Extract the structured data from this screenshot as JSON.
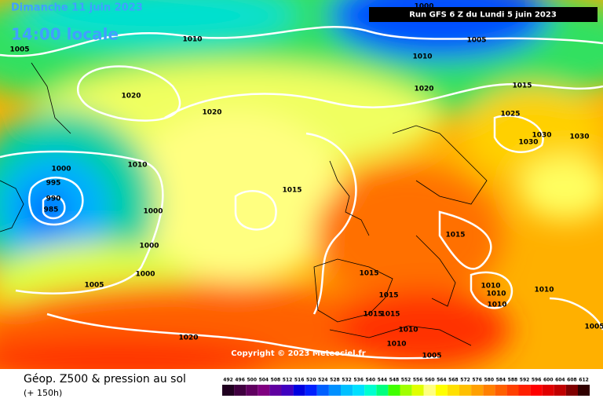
{
  "header": {
    "date": "Dimanche 11 juin 2023",
    "time": "14:00 locale",
    "run": "Run GFS 6 Z du Lundi 5 juin 2023"
  },
  "isobar_labels": [
    1000,
    1010,
    1005,
    1005,
    1010,
    1020,
    1020,
    1015,
    1020,
    1025,
    1030,
    1030,
    1030,
    1010,
    1000,
    995,
    990,
    985,
    1015,
    1000,
    1015,
    1000,
    1000,
    1015,
    1005,
    1010,
    1010,
    1010,
    1015,
    1010,
    1015,
    1015,
    1005,
    1010,
    1020,
    1010,
    1005
  ],
  "copyright": "Copyright © 2023 Meteociel.fr",
  "footer": {
    "title": "Géop. Z500 & pression au sol",
    "lead": "(+ 150h)"
  },
  "legend": {
    "values": [
      492,
      496,
      500,
      504,
      508,
      512,
      516,
      520,
      524,
      528,
      532,
      536,
      540,
      544,
      548,
      552,
      556,
      560,
      564,
      568,
      572,
      576,
      580,
      584,
      588,
      592,
      596,
      600,
      604,
      608,
      612
    ],
    "colors": [
      "#200020",
      "#400040",
      "#600060",
      "#800080",
      "#6000a0",
      "#4000c0",
      "#0000e0",
      "#0020ff",
      "#0060ff",
      "#0090ff",
      "#00c0ff",
      "#00e0ff",
      "#00ffd0",
      "#00ff80",
      "#40ff00",
      "#a0ff00",
      "#e0ff00",
      "#ffff80",
      "#ffff00",
      "#ffe000",
      "#ffc000",
      "#ffa000",
      "#ff8000",
      "#ff6000",
      "#ff4000",
      "#ff2000",
      "#ff0000",
      "#e00000",
      "#c00000",
      "#800000",
      "#300000"
    ]
  }
}
